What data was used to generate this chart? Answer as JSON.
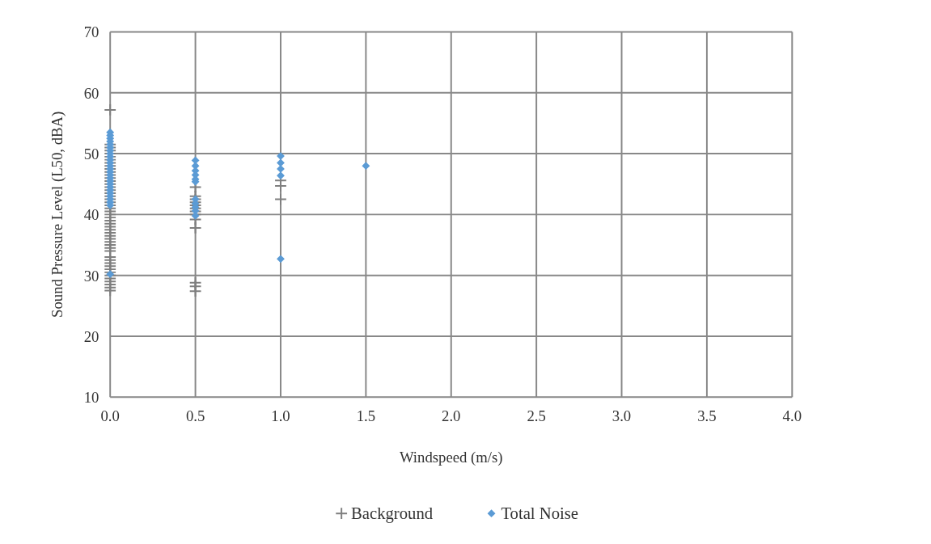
{
  "chart_data": {
    "type": "scatter",
    "xlabel": "Windspeed (m/s)",
    "ylabel": "Sound Pressure Level (L50, dBA)",
    "xlim": [
      0,
      4
    ],
    "xticks": [
      {
        "value": 0,
        "label": "0.0"
      },
      {
        "value": 0.5,
        "label": "0.5"
      },
      {
        "value": 1,
        "label": "1.0"
      },
      {
        "value": 1.5,
        "label": "1.5"
      },
      {
        "value": 2,
        "label": "2.0"
      },
      {
        "value": 2.5,
        "label": "2.5"
      },
      {
        "value": 3,
        "label": "3.0"
      },
      {
        "value": 3.5,
        "label": "3.5"
      },
      {
        "value": 4,
        "label": "4.0"
      }
    ],
    "ylim": [
      10,
      70
    ],
    "yticks": [
      10,
      20,
      30,
      40,
      50,
      60,
      70
    ],
    "grid": true,
    "legend": "bottom",
    "series": [
      {
        "name": "Background",
        "color": "#7f7f7f",
        "marker": "cross",
        "x": [
          0,
          0,
          0,
          0,
          0,
          0,
          0,
          0,
          0,
          0,
          0,
          0,
          0,
          0,
          0,
          0,
          0,
          0,
          0,
          0,
          0,
          0,
          0,
          0,
          0,
          0,
          0,
          0,
          0,
          0,
          0,
          0,
          0,
          0,
          0,
          0,
          0,
          0,
          0,
          0,
          0,
          0,
          0,
          0,
          0,
          0,
          0,
          0,
          0,
          0.5,
          0.5,
          0.5,
          0.5,
          0.5,
          0.5,
          0.5,
          0.5,
          0.5,
          0.5,
          0.5,
          0.5,
          0.5,
          1,
          1,
          1
        ],
        "values": [
          27.5,
          28,
          28.5,
          29,
          29.5,
          30,
          30.5,
          31,
          31.5,
          32,
          32.5,
          33,
          34,
          34.5,
          35,
          35.5,
          36,
          36.5,
          37,
          37.5,
          38,
          38.5,
          39,
          39.5,
          40,
          40.5,
          41,
          41.5,
          42,
          42.5,
          43,
          43.5,
          44,
          44.5,
          45,
          45.5,
          46,
          46.5,
          47,
          47.5,
          48,
          48.5,
          49,
          49.5,
          50,
          50.5,
          51,
          51.5,
          57.2,
          44.5,
          43,
          42.5,
          42,
          41.5,
          41,
          40.5,
          40,
          39.2,
          37.8,
          28.8,
          28.2,
          27.4,
          45.6,
          44.7,
          42.5
        ]
      },
      {
        "name": "Total Noise",
        "color": "#5b9bd5",
        "marker": "diamond",
        "x": [
          0,
          0,
          0,
          0,
          0,
          0,
          0,
          0,
          0,
          0,
          0,
          0,
          0,
          0,
          0,
          0,
          0,
          0,
          0,
          0,
          0,
          0,
          0,
          0,
          0,
          0,
          0.5,
          0.5,
          0.5,
          0.5,
          0.5,
          0.5,
          0.5,
          0.5,
          0.5,
          0.5,
          0.5,
          1,
          1,
          1,
          1,
          1,
          1.5
        ],
        "values": [
          30.2,
          41.5,
          42,
          42.5,
          43,
          43.5,
          44,
          44.5,
          45,
          45.5,
          46,
          46.5,
          47,
          47.5,
          48,
          48.5,
          49,
          49.5,
          50,
          50.5,
          51,
          51.5,
          52,
          52.5,
          53,
          53.5,
          48.9,
          48,
          47.2,
          46.5,
          45.8,
          45.4,
          42.5,
          41.8,
          41.2,
          40.6,
          39.8,
          49.6,
          48.5,
          47.5,
          46.4,
          32.7,
          48
        ]
      }
    ]
  }
}
